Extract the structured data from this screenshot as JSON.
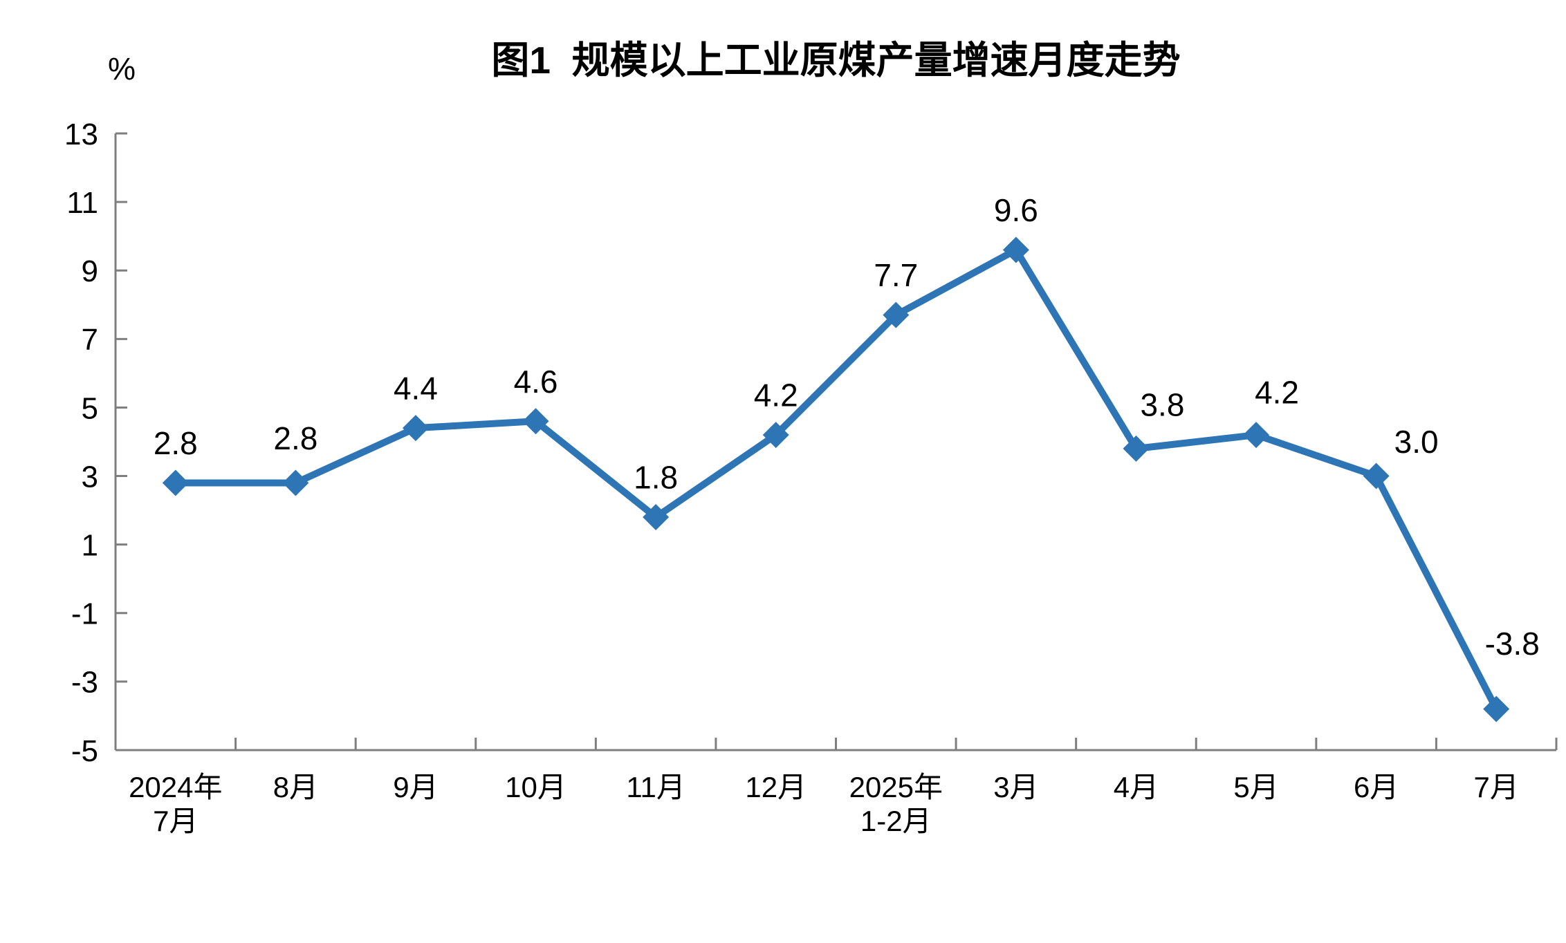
{
  "figure": {
    "title": "图1  规模以上工业原煤产量增速月度走势",
    "unit_label": "%"
  },
  "chart_data": {
    "type": "line",
    "title": "图1  规模以上工业原煤产量增速月度走势",
    "ylabel": "%",
    "xlabel": "",
    "categories": [
      [
        "2024年",
        "7月"
      ],
      [
        "8月"
      ],
      [
        "9月"
      ],
      [
        "10月"
      ],
      [
        "11月"
      ],
      [
        "12月"
      ],
      [
        "2025年",
        "1-2月"
      ],
      [
        "3月"
      ],
      [
        "4月"
      ],
      [
        "5月"
      ],
      [
        "6月"
      ],
      [
        "7月"
      ]
    ],
    "values": [
      2.8,
      2.8,
      4.4,
      4.6,
      1.8,
      4.2,
      7.7,
      9.6,
      3.8,
      4.2,
      3.0,
      -3.8
    ],
    "data_labels": [
      "2.8",
      "2.8",
      "4.4",
      "4.6",
      "1.8",
      "4.2",
      "7.7",
      "9.6",
      "3.8",
      "4.2",
      "3.0",
      "-3.8"
    ],
    "y_ticks": [
      13,
      11,
      9,
      7,
      5,
      3,
      1,
      -1,
      -3,
      -5
    ],
    "ylim": [
      -5,
      13
    ],
    "grid": false,
    "legend": "none",
    "marker": "diamond",
    "line_color": "#2E75B6",
    "axis_color": "#7F7F7F",
    "text_color": "#000000"
  }
}
